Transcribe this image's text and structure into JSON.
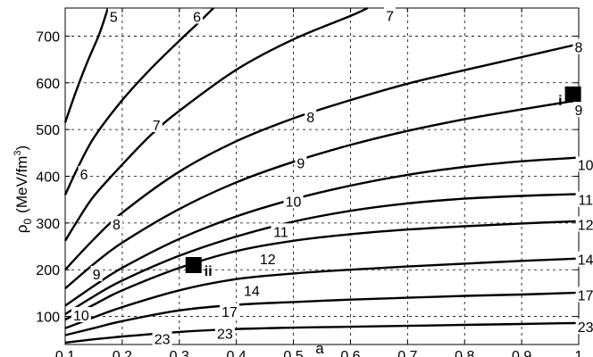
{
  "chart_data": {
    "type": "line",
    "xlabel": "a",
    "ylabel_main": "ρ",
    "ylabel_sub": "0",
    "ylabel_unit_pre": "(MeV/fm",
    "ylabel_unit_sup": "3",
    "ylabel_unit_post": ")",
    "xlim": [
      0.1,
      1.0
    ],
    "ylim": [
      40,
      760
    ],
    "grid": true,
    "x_ticks": [
      {
        "value": 0.1,
        "label": "0.1"
      },
      {
        "value": 0.2,
        "label": "0.2"
      },
      {
        "value": 0.3,
        "label": "0.3"
      },
      {
        "value": 0.4,
        "label": "0.4"
      },
      {
        "value": 0.5,
        "label": "0.5"
      },
      {
        "value": 0.6,
        "label": "0.6"
      },
      {
        "value": 0.7,
        "label": "0.7"
      },
      {
        "value": 0.8,
        "label": "0.8"
      },
      {
        "value": 0.9,
        "label": "0.9"
      },
      {
        "value": 1.0,
        "label": "1"
      }
    ],
    "y_ticks": [
      {
        "value": 100,
        "label": "100"
      },
      {
        "value": 200,
        "label": "200"
      },
      {
        "value": 300,
        "label": "300"
      },
      {
        "value": 400,
        "label": "400"
      },
      {
        "value": 500,
        "label": "500"
      },
      {
        "value": 600,
        "label": "600"
      },
      {
        "value": 700,
        "label": "700"
      }
    ],
    "series": [
      {
        "label": "5",
        "points": [
          [
            0.1,
            515
          ],
          [
            0.12,
            585
          ],
          [
            0.14,
            648
          ],
          [
            0.16,
            705
          ],
          [
            0.175,
            760
          ]
        ],
        "labels": [
          {
            "x": 0.185,
            "y": 742,
            "text": "5"
          }
        ]
      },
      {
        "label": "6",
        "points": [
          [
            0.1,
            360
          ],
          [
            0.12,
            413
          ],
          [
            0.15,
            482
          ],
          [
            0.2,
            563
          ],
          [
            0.25,
            630
          ],
          [
            0.3,
            690
          ],
          [
            0.335,
            730
          ],
          [
            0.36,
            760
          ]
        ],
        "labels": [
          {
            "x": 0.133,
            "y": 405,
            "text": "6"
          },
          {
            "x": 0.331,
            "y": 742,
            "text": "6"
          }
        ]
      },
      {
        "label": "7",
        "points": [
          [
            0.1,
            262
          ],
          [
            0.12,
            302
          ],
          [
            0.15,
            357
          ],
          [
            0.2,
            425
          ],
          [
            0.25,
            488
          ],
          [
            0.3,
            540
          ],
          [
            0.4,
            628
          ],
          [
            0.5,
            693
          ],
          [
            0.6,
            743
          ],
          [
            0.63,
            760
          ]
        ],
        "labels": [
          {
            "x": 0.26,
            "y": 510,
            "text": "7"
          },
          {
            "x": 0.669,
            "y": 744,
            "text": "7"
          }
        ]
      },
      {
        "label": "8",
        "points": [
          [
            0.1,
            200
          ],
          [
            0.15,
            265
          ],
          [
            0.2,
            322
          ],
          [
            0.3,
            410
          ],
          [
            0.4,
            475
          ],
          [
            0.5,
            524
          ],
          [
            0.6,
            563
          ],
          [
            0.7,
            598
          ],
          [
            0.8,
            627
          ],
          [
            0.9,
            655
          ],
          [
            1.0,
            683
          ]
        ],
        "labels": [
          {
            "x": 0.19,
            "y": 298,
            "text": "8"
          },
          {
            "x": 0.53,
            "y": 527,
            "text": "8"
          },
          {
            "x": 1.0,
            "y": 677,
            "text": "8"
          }
        ]
      },
      {
        "label": "9",
        "points": [
          [
            0.1,
            160
          ],
          [
            0.15,
            212
          ],
          [
            0.2,
            258
          ],
          [
            0.3,
            330
          ],
          [
            0.4,
            387
          ],
          [
            0.5,
            431
          ],
          [
            0.6,
            467
          ],
          [
            0.7,
            497
          ],
          [
            0.8,
            522
          ],
          [
            0.9,
            543
          ],
          [
            1.0,
            563
          ]
        ],
        "labels": [
          {
            "x": 0.155,
            "y": 191,
            "text": "9"
          },
          {
            "x": 0.513,
            "y": 429,
            "text": "9"
          },
          {
            "x": 1.0,
            "y": 542,
            "text": "9"
          }
        ]
      },
      {
        "label": "10",
        "points": [
          [
            0.1,
            123
          ],
          [
            0.15,
            165
          ],
          [
            0.2,
            204
          ],
          [
            0.3,
            266
          ],
          [
            0.4,
            314
          ],
          [
            0.5,
            351
          ],
          [
            0.6,
            380
          ],
          [
            0.7,
            403
          ],
          [
            0.8,
            420
          ],
          [
            0.9,
            432
          ],
          [
            1.0,
            440
          ]
        ],
        "labels": [
          {
            "x": 0.128,
            "y": 103,
            "text": "10"
          },
          {
            "x": 0.5,
            "y": 347,
            "text": "10"
          },
          {
            "x": 1.012,
            "y": 425,
            "text": "10"
          }
        ]
      },
      {
        "label": "11",
        "points": [
          [
            0.1,
            105
          ],
          [
            0.15,
            143
          ],
          [
            0.2,
            177
          ],
          [
            0.3,
            230
          ],
          [
            0.4,
            271
          ],
          [
            0.5,
            303
          ],
          [
            0.6,
            326
          ],
          [
            0.7,
            342
          ],
          [
            0.8,
            352
          ],
          [
            0.9,
            358
          ],
          [
            1.0,
            362
          ]
        ],
        "labels": [
          {
            "x": 0.478,
            "y": 282,
            "text": "11"
          },
          {
            "x": 1.012,
            "y": 350,
            "text": "11"
          }
        ]
      },
      {
        "label": "12",
        "points": [
          [
            0.1,
            93
          ],
          [
            0.15,
            125
          ],
          [
            0.2,
            156
          ],
          [
            0.3,
            204
          ],
          [
            0.4,
            240
          ],
          [
            0.5,
            262
          ],
          [
            0.6,
            276
          ],
          [
            0.7,
            286
          ],
          [
            0.8,
            293
          ],
          [
            0.9,
            299
          ],
          [
            1.0,
            304
          ]
        ],
        "labels": [
          {
            "x": 0.455,
            "y": 223,
            "text": "12"
          },
          {
            "x": 1.012,
            "y": 297,
            "text": "12"
          }
        ]
      },
      {
        "label": "14",
        "points": [
          [
            0.1,
            75
          ],
          [
            0.15,
            98
          ],
          [
            0.2,
            120
          ],
          [
            0.3,
            156
          ],
          [
            0.4,
            180
          ],
          [
            0.5,
            192
          ],
          [
            0.6,
            200
          ],
          [
            0.7,
            207
          ],
          [
            0.8,
            213
          ],
          [
            0.9,
            219
          ],
          [
            1.0,
            224
          ]
        ],
        "labels": [
          {
            "x": 0.427,
            "y": 156,
            "text": "14"
          },
          {
            "x": 1.012,
            "y": 222,
            "text": "14"
          }
        ]
      },
      {
        "label": "17",
        "points": [
          [
            0.1,
            60
          ],
          [
            0.15,
            75
          ],
          [
            0.2,
            90
          ],
          [
            0.3,
            113
          ],
          [
            0.4,
            125
          ],
          [
            0.5,
            131
          ],
          [
            0.6,
            136
          ],
          [
            0.7,
            140
          ],
          [
            0.8,
            144
          ],
          [
            0.9,
            147
          ],
          [
            1.0,
            151
          ]
        ],
        "labels": [
          {
            "x": 0.388,
            "y": 111,
            "text": "17"
          },
          {
            "x": 1.012,
            "y": 146,
            "text": "17"
          }
        ]
      },
      {
        "label": "23",
        "points": [
          [
            0.1,
            44
          ],
          [
            0.15,
            51
          ],
          [
            0.2,
            57
          ],
          [
            0.3,
            67
          ],
          [
            0.4,
            73
          ],
          [
            0.5,
            76
          ],
          [
            0.6,
            78
          ],
          [
            0.7,
            80
          ],
          [
            0.8,
            82
          ],
          [
            0.9,
            84
          ],
          [
            1.0,
            86
          ]
        ],
        "labels": [
          {
            "x": 0.27,
            "y": 52,
            "text": "23"
          },
          {
            "x": 0.38,
            "y": 64,
            "text": "23"
          },
          {
            "x": 1.012,
            "y": 78,
            "text": "23"
          }
        ]
      }
    ],
    "markers": [
      {
        "x": 0.99,
        "y": 575,
        "label": "i"
      },
      {
        "x": 0.325,
        "y": 210,
        "label": "ii"
      }
    ]
  }
}
